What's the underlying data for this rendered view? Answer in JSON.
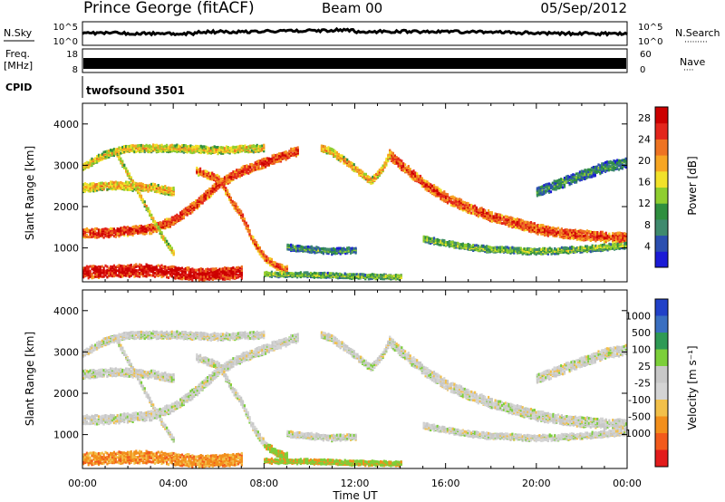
{
  "header": {
    "radar": "Prince George (fitACF)",
    "beam": "Beam 00",
    "date": "05/Sep/2012"
  },
  "panels": {
    "nsky_label": "N.Sky",
    "nsearch_label": "N.Search",
    "nsearch_dots": "·········",
    "freq_label_1": "Freq.",
    "freq_label_2": "[MHz]",
    "nave_label": "Nave",
    "nave_dots": "····",
    "cpid_label": "CPID",
    "cpid_value": "twofsound 3501",
    "nsky_ticks": [
      "10^5",
      "10^0"
    ],
    "nsearch_ticks": [
      "10^5",
      "10^0"
    ],
    "freq_ticks": [
      "18",
      "8"
    ],
    "nave_ticks": [
      "60",
      "0"
    ]
  },
  "colors": {
    "power_scale": [
      "#1b1bd6",
      "#2b4fb0",
      "#3f8a6e",
      "#2f8f3f",
      "#8fce2f",
      "#f2e22a",
      "#f7a623",
      "#ee7322",
      "#e3261c",
      "#cc0000"
    ],
    "velocity_scale": [
      "#2141c8",
      "#3a6fc1",
      "#2f9a55",
      "#7ccf3a",
      "#c8c8c8",
      "#d4d4d4",
      "#f2c04a",
      "#f28f1c",
      "#f25a1c",
      "#e31c1c"
    ]
  },
  "chart_data": [
    {
      "type": "heatmap",
      "name": "power",
      "x_ticks": [
        "00:00",
        "04:00",
        "08:00",
        "12:00",
        "16:00",
        "20:00",
        "00:00"
      ],
      "xlim_hours": [
        0,
        24
      ],
      "ylabel": "Slant Range [km]",
      "y_ticks": [
        1000,
        2000,
        3000,
        4000
      ],
      "ylim": [
        180,
        4500
      ],
      "colorbar_label": "Power [dB]",
      "colorbar_ticks": [
        4,
        8,
        12,
        16,
        20,
        24,
        28
      ],
      "colorbar_range": [
        0,
        30
      ],
      "bands": [
        {
          "points": [
            [
              0,
              1400
            ],
            [
              1,
              1400
            ],
            [
              2,
              1450
            ],
            [
              3,
              1500
            ],
            [
              4,
              1700
            ],
            [
              5,
              2100
            ],
            [
              6,
              2600
            ],
            [
              7,
              2900
            ],
            [
              8,
              3100
            ],
            [
              9,
              3300
            ],
            [
              9.5,
              3400
            ]
          ],
          "width": 200,
          "power": 22
        },
        {
          "points": [
            [
              13.5,
              3300
            ],
            [
              14,
              3050
            ],
            [
              15,
              2600
            ],
            [
              16,
              2250
            ],
            [
              17,
              2000
            ],
            [
              18,
              1800
            ],
            [
              19,
              1650
            ],
            [
              20,
              1500
            ],
            [
              21,
              1400
            ],
            [
              22,
              1350
            ],
            [
              23,
              1300
            ],
            [
              24,
              1300
            ]
          ],
          "width": 220,
          "power": 21
        },
        {
          "points": [
            [
              0,
              450
            ],
            [
              1,
              480
            ],
            [
              2,
              500
            ],
            [
              3,
              500
            ],
            [
              4,
              450
            ],
            [
              5,
              400
            ],
            [
              6,
              420
            ],
            [
              7,
              450
            ]
          ],
          "width": 280,
          "power": 25
        },
        {
          "points": [
            [
              15,
              1250
            ],
            [
              16,
              1150
            ],
            [
              17,
              1050
            ],
            [
              18,
              1000
            ],
            [
              20,
              950
            ],
            [
              22,
              1000
            ],
            [
              24,
              1100
            ]
          ],
          "width": 120,
          "power": 9
        },
        {
          "points": [
            [
              10.5,
              3450
            ],
            [
              11,
              3350
            ],
            [
              11.5,
              3150
            ],
            [
              12,
              2950
            ],
            [
              12.7,
              2650
            ],
            [
              13.2,
              2950
            ],
            [
              13.5,
              3300
            ]
          ],
          "width": 150,
          "power": 16
        },
        {
          "points": [
            [
              1.5,
              3300
            ],
            [
              2,
              2800
            ],
            [
              2.5,
              2300
            ],
            [
              3,
              1800
            ],
            [
              3.5,
              1300
            ],
            [
              4,
              900
            ]
          ],
          "width": 100,
          "power": 14
        },
        {
          "points": [
            [
              0,
              2500
            ],
            [
              1.5,
              2550
            ],
            [
              3,
              2500
            ],
            [
              4,
              2400
            ]
          ],
          "width": 180,
          "power": 15
        },
        {
          "points": [
            [
              5,
              2900
            ],
            [
              6,
              2700
            ],
            [
              6.5,
              2200
            ],
            [
              7,
              1800
            ],
            [
              7.5,
              1200
            ],
            [
              8,
              800
            ],
            [
              8.5,
              600
            ],
            [
              9,
              500
            ]
          ],
          "width": 150,
          "power": 20
        },
        {
          "points": [
            [
              9,
              1050
            ],
            [
              10,
              1000
            ],
            [
              11,
              950
            ],
            [
              12,
              980
            ]
          ],
          "width": 120,
          "power": 6
        },
        {
          "points": [
            [
              8,
              400
            ],
            [
              10,
              380
            ],
            [
              12,
              350
            ],
            [
              14,
              330
            ]
          ],
          "width": 90,
          "power": 9
        },
        {
          "points": [
            [
              0,
              3000
            ],
            [
              1,
              3300
            ],
            [
              2,
              3450
            ],
            [
              4,
              3450
            ],
            [
              6,
              3400
            ],
            [
              8,
              3450
            ]
          ],
          "width": 150,
          "power": 14
        },
        {
          "points": [
            [
              20,
              2400
            ],
            [
              21,
              2600
            ],
            [
              22,
              2800
            ],
            [
              23,
              3000
            ],
            [
              24,
              3100
            ]
          ],
          "width": 220,
          "power": 5
        }
      ]
    },
    {
      "type": "heatmap",
      "name": "velocity",
      "x_ticks": [
        "00:00",
        "04:00",
        "08:00",
        "12:00",
        "16:00",
        "20:00",
        "00:00"
      ],
      "xlim_hours": [
        0,
        24
      ],
      "xlabel": "Time UT",
      "ylabel": "Slant Range [km]",
      "y_ticks": [
        1000,
        2000,
        3000,
        4000
      ],
      "ylim": [
        180,
        4500
      ],
      "colorbar_label": "Velocity [m s⁻¹]",
      "colorbar_ticks": [
        "1000",
        "500",
        "100",
        "25",
        "-25",
        "-100",
        "-500",
        "-1000"
      ]
    }
  ]
}
